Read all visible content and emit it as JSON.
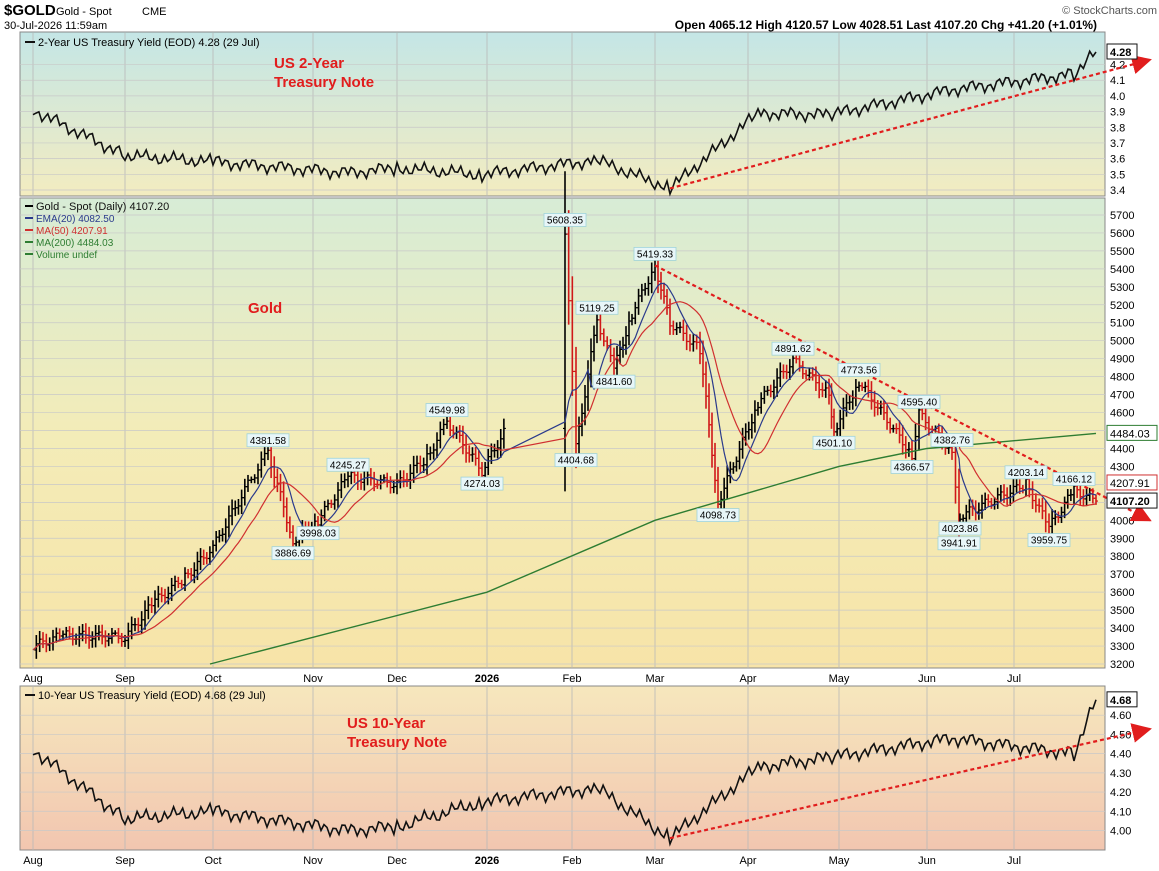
{
  "header": {
    "symbol": "$GOLD",
    "name": "Gold - Spot",
    "exchange": "CME",
    "datetime": "30-Jul-2026 11:59am",
    "quote": "Open 4065.12  High 4120.57  Low 4028.51  Last 4107.20  Chg +41.20 (+1.01%)",
    "brand": "© StockCharts.com"
  },
  "colors": {
    "price_up": "#000000",
    "price_down": "#d01818",
    "ema20": "#2a3a8c",
    "ma50": "#d03030",
    "ma200": "#2e7d32",
    "trend": "#e11d1d",
    "panel_top": "#c9e6e4",
    "panel_bottom": "#f5e7ad"
  },
  "x_labels": [
    "Aug",
    "Sep",
    "Oct",
    "Nov",
    "Dec",
    "2026",
    "Feb",
    "Mar",
    "Apr",
    "May",
    "Jun",
    "Jul"
  ],
  "chart_data": [
    {
      "type": "line",
      "legend": "2-Year US Treasury Yield (EOD) 4.28 (29 Jul)",
      "note": "US 2-Year Treasury Note",
      "last_label": "4.28",
      "ylim": [
        3.4,
        4.28
      ],
      "yticks": [
        "4.2",
        "4.1",
        "4.0",
        "3.9",
        "3.8",
        "3.7",
        "3.6",
        "3.5",
        "3.4"
      ],
      "x": [
        "Aug",
        "Sep",
        "Oct",
        "Nov",
        "Dec",
        "2026",
        "Feb",
        "Mar",
        "Apr",
        "May",
        "Jun",
        "Jul",
        "Jul-29"
      ],
      "values": [
        3.91,
        3.62,
        3.58,
        3.51,
        3.54,
        3.5,
        3.59,
        3.41,
        3.89,
        3.88,
        4.04,
        4.14,
        4.28
      ],
      "trendline": {
        "from": [
          "Mar",
          3.41
        ],
        "to": [
          "Jul-29",
          4.22
        ]
      }
    },
    {
      "type": "bar",
      "legend": [
        {
          "name": "Gold - Spot (Daily) 4107.20",
          "color": "#000000"
        },
        {
          "name": "EMA(20) 4082.50",
          "color": "#2a3a8c"
        },
        {
          "name": "MA(50) 4207.91",
          "color": "#d03030"
        },
        {
          "name": "MA(200) 4484.03",
          "color": "#2e7d32"
        },
        {
          "name": "Volume undef",
          "color": "#2e7d32"
        }
      ],
      "note": "Gold",
      "ylim": [
        3200,
        5750
      ],
      "yticks": [
        "5700",
        "5600",
        "5500",
        "5400",
        "5300",
        "5200",
        "5100",
        "5000",
        "4900",
        "4800",
        "4700",
        "4600",
        "4500",
        "4400",
        "4300",
        "4200",
        "4100",
        "4000",
        "3900",
        "3800",
        "3700",
        "3600",
        "3500",
        "3400",
        "3300",
        "3200"
      ],
      "value_labels": {
        "ma200": "4484.03",
        "ma50": "4207.91",
        "last": "4107.20"
      },
      "price_path": [
        [
          "Aug",
          3300
        ],
        [
          "Aug+",
          3360
        ],
        [
          "Sep",
          3350
        ],
        [
          "Sep+",
          3550
        ],
        [
          "Sep++",
          3680
        ],
        [
          "Oct",
          3850
        ],
        [
          "Oct+",
          4200
        ],
        [
          "Oct-high",
          4381.58
        ],
        [
          "Nov-low",
          3886.69
        ],
        [
          "Nov",
          4245.27
        ],
        [
          "Nov+",
          3998.03
        ],
        [
          "Dec",
          4200
        ],
        [
          "Dec+",
          4350
        ],
        [
          "Dec++",
          4549.98
        ],
        [
          "2026",
          4274.03
        ],
        [
          "2026+",
          4520
        ],
        [
          "Jan",
          4650
        ],
        [
          "Jan+",
          5100
        ],
        [
          "Feb-high",
          5608.35
        ],
        [
          "Feb-low",
          4404.68
        ],
        [
          "Feb",
          5119.25
        ],
        [
          "Feb+",
          4841.6
        ],
        [
          "Feb++",
          5150
        ],
        [
          "Mar-high",
          5419.33
        ],
        [
          "Mar",
          5100
        ],
        [
          "Mar+",
          4950
        ],
        [
          "Mar-low",
          4098.73
        ],
        [
          "Apr",
          4650
        ],
        [
          "Apr+",
          4891.62
        ],
        [
          "May",
          4700
        ],
        [
          "May-low",
          4501.1
        ],
        [
          "May-high",
          4773.56
        ],
        [
          "Jun-",
          4595.4
        ],
        [
          "Jun-low",
          4366.57
        ],
        [
          "Jun",
          4382.76
        ],
        [
          "Jun-low2",
          4023.86
        ],
        [
          "Jul-",
          4203.14
        ],
        [
          "Jul-low",
          3941.91
        ],
        [
          "Jul",
          4166.12
        ],
        [
          "Jul-low2",
          3959.75
        ],
        [
          "Jul-29",
          4107.2
        ]
      ],
      "annotations": [
        {
          "x": "Oct-high",
          "value": 4381.58,
          "label": "4381.58"
        },
        {
          "x": "Nov-low",
          "value": 3886.69,
          "label": "3886.69"
        },
        {
          "x": "Nov",
          "value": 4245.27,
          "label": "4245.27"
        },
        {
          "x": "Nov+",
          "value": 3998.03,
          "label": "3998.03"
        },
        {
          "x": "Dec++",
          "value": 4549.98,
          "label": "4549.98"
        },
        {
          "x": "2026",
          "value": 4274.03,
          "label": "4274.03"
        },
        {
          "x": "Feb-high",
          "value": 5608.35,
          "label": "5608.35"
        },
        {
          "x": "Feb-low",
          "value": 4404.68,
          "label": "4404.68"
        },
        {
          "x": "Feb",
          "value": 5119.25,
          "label": "5119.25"
        },
        {
          "x": "Feb+",
          "value": 4841.6,
          "label": "4841.60"
        },
        {
          "x": "Mar-high",
          "value": 5419.33,
          "label": "5419.33"
        },
        {
          "x": "Mar-low",
          "value": 4098.73,
          "label": "4098.73"
        },
        {
          "x": "Apr+",
          "value": 4891.62,
          "label": "4891.62"
        },
        {
          "x": "May-low",
          "value": 4501.1,
          "label": "4501.10"
        },
        {
          "x": "May-high",
          "value": 4773.56,
          "label": "4773.56"
        },
        {
          "x": "Jun-",
          "value": 4595.4,
          "label": "4595.40"
        },
        {
          "x": "Jun-low",
          "value": 4366.57,
          "label": "4366.57"
        },
        {
          "x": "Jun",
          "value": 4382.76,
          "label": "4382.76"
        },
        {
          "x": "Jun-low2",
          "value": 4023.86,
          "label": "4023.86"
        },
        {
          "x": "Jul-",
          "value": 4203.14,
          "label": "4203.14"
        },
        {
          "x": "Jul-low",
          "value": 3941.91,
          "label": "3941.91"
        },
        {
          "x": "Jul",
          "value": 4166.12,
          "label": "4166.12"
        },
        {
          "x": "Jul-low2",
          "value": 3959.75,
          "label": "3959.75"
        }
      ],
      "trendline": {
        "from": [
          "Mar-high",
          5419.33
        ],
        "to": [
          "Jul-29",
          4000
        ]
      }
    },
    {
      "type": "line",
      "legend": "10-Year US Treasury Yield (EOD) 4.68 (29 Jul)",
      "note": "US 10-Year Treasury Note",
      "last_label": "4.68",
      "ylim": [
        3.94,
        4.7
      ],
      "yticks": [
        "4.60",
        "4.50",
        "4.40",
        "4.30",
        "4.20",
        "4.10",
        "4.00"
      ],
      "x": [
        "Aug",
        "Sep",
        "Oct",
        "Nov",
        "Dec",
        "2026",
        "Feb",
        "Mar",
        "Apr",
        "May",
        "Jun",
        "Jul",
        "Jul-29"
      ],
      "values": [
        4.42,
        4.06,
        4.1,
        4.0,
        4.02,
        4.15,
        4.22,
        3.96,
        4.33,
        4.38,
        4.48,
        4.4,
        4.68
      ],
      "trendline": {
        "from": [
          "Mar",
          3.96
        ],
        "to": [
          "Jul-29",
          4.52
        ]
      }
    }
  ]
}
